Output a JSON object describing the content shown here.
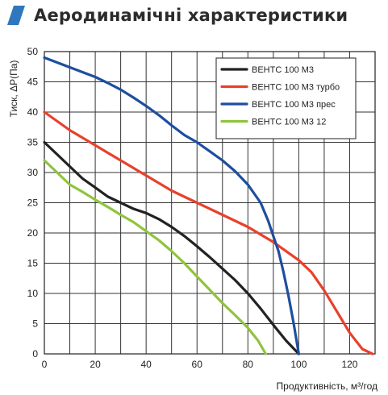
{
  "header": {
    "title": "Аеродинамічні характеристики",
    "icon": "blue-parallelogram-icon",
    "icon_color": "#2f78bd"
  },
  "chart_data": {
    "type": "line",
    "xlabel": "Продуктивність, м³/год",
    "ylabel": "Тиск, ΔР(Па)",
    "xlim": [
      0,
      130
    ],
    "ylim": [
      0,
      50
    ],
    "xticks": [
      0,
      20,
      40,
      60,
      80,
      100,
      120
    ],
    "yticks": [
      0,
      5,
      10,
      15,
      20,
      25,
      30,
      35,
      40,
      45,
      50
    ],
    "grid": true,
    "legend_position": "top-right",
    "series": [
      {
        "name": "ВЕНТС 100 М3",
        "color": "#222222",
        "points": [
          [
            0,
            35
          ],
          [
            5,
            33
          ],
          [
            10,
            31
          ],
          [
            15,
            29
          ],
          [
            20,
            27.5
          ],
          [
            25,
            26
          ],
          [
            30,
            25
          ],
          [
            35,
            24
          ],
          [
            40,
            23.3
          ],
          [
            45,
            22.3
          ],
          [
            50,
            21
          ],
          [
            55,
            19.5
          ],
          [
            60,
            17.8
          ],
          [
            65,
            16
          ],
          [
            70,
            14.1
          ],
          [
            75,
            12.2
          ],
          [
            80,
            10
          ],
          [
            85,
            7.5
          ],
          [
            90,
            4.8
          ],
          [
            95,
            2.2
          ],
          [
            100,
            0
          ]
        ]
      },
      {
        "name": "ВЕНТС 100 М3 турбо",
        "color": "#e8412c",
        "points": [
          [
            0,
            40
          ],
          [
            10,
            37
          ],
          [
            20,
            34.5
          ],
          [
            30,
            32
          ],
          [
            40,
            29.5
          ],
          [
            50,
            27
          ],
          [
            60,
            25
          ],
          [
            70,
            23
          ],
          [
            80,
            21
          ],
          [
            90,
            18.5
          ],
          [
            100,
            15.5
          ],
          [
            105,
            13.5
          ],
          [
            110,
            10.5
          ],
          [
            115,
            7
          ],
          [
            120,
            3.5
          ],
          [
            125,
            0.8
          ],
          [
            129,
            0
          ]
        ]
      },
      {
        "name": "ВЕНТС 100 М3 прес",
        "color": "#1e4e9f",
        "points": [
          [
            0,
            49
          ],
          [
            5,
            48.2
          ],
          [
            10,
            47.4
          ],
          [
            15,
            46.6
          ],
          [
            20,
            45.8
          ],
          [
            25,
            44.8
          ],
          [
            30,
            43.7
          ],
          [
            35,
            42.4
          ],
          [
            40,
            41
          ],
          [
            45,
            39.5
          ],
          [
            50,
            37.8
          ],
          [
            55,
            36.2
          ],
          [
            60,
            35
          ],
          [
            65,
            33.5
          ],
          [
            70,
            32
          ],
          [
            75,
            30.2
          ],
          [
            80,
            28
          ],
          [
            85,
            25
          ],
          [
            88,
            22
          ],
          [
            90,
            19.5
          ],
          [
            92,
            17
          ],
          [
            94,
            13.5
          ],
          [
            96,
            9.5
          ],
          [
            98,
            5
          ],
          [
            100,
            0
          ]
        ]
      },
      {
        "name": "ВЕНТС 100 М3 12",
        "color": "#8fc43d",
        "points": [
          [
            0,
            32
          ],
          [
            5,
            30
          ],
          [
            10,
            28
          ],
          [
            15,
            26.8
          ],
          [
            20,
            25.5
          ],
          [
            25,
            24.3
          ],
          [
            30,
            23
          ],
          [
            35,
            21.8
          ],
          [
            40,
            20.3
          ],
          [
            45,
            18.8
          ],
          [
            50,
            17
          ],
          [
            55,
            15
          ],
          [
            60,
            12.8
          ],
          [
            65,
            10.6
          ],
          [
            70,
            8.4
          ],
          [
            75,
            6.4
          ],
          [
            80,
            4.3
          ],
          [
            84,
            2.2
          ],
          [
            87,
            0
          ]
        ]
      }
    ]
  }
}
